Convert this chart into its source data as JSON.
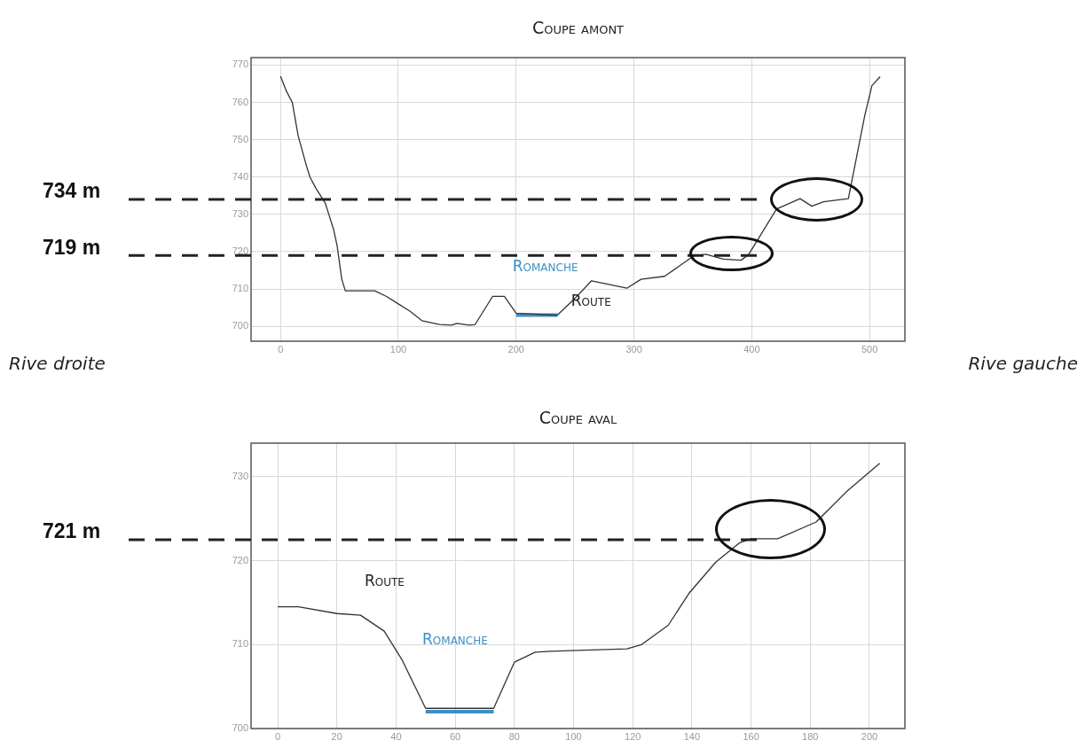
{
  "chart_data": [
    {
      "type": "line",
      "title": "Coupe amont",
      "x": [
        0,
        5,
        10,
        15,
        22,
        25,
        30,
        38,
        40,
        45,
        48,
        52,
        55,
        60,
        80,
        90,
        100,
        110,
        120,
        135,
        145,
        150,
        160,
        165,
        180,
        190,
        200,
        235,
        250,
        264,
        294,
        306,
        326,
        351,
        361,
        376,
        391,
        397.5,
        421,
        441,
        451,
        461,
        482,
        496,
        502,
        509
      ],
      "series": [
        {
          "color": "#333333",
          "values": [
            767,
            763,
            760,
            751,
            743,
            740,
            737,
            733,
            731,
            726,
            721.7,
            712.6,
            709.5,
            709.5,
            709.5,
            708,
            706,
            704,
            701.5,
            700.5,
            700.3,
            700.8,
            700.3,
            700.4,
            708,
            708,
            703.5,
            703,
            707.5,
            712.2,
            710.2,
            712.6,
            713.4,
            718.9,
            719.3,
            718,
            717.7,
            719.3,
            731.4,
            734.2,
            732.2,
            733.4,
            734.2,
            756.6,
            764.5,
            766.9
          ]
        },
        {
          "color": "#3d8fc4",
          "x": [
            200,
            235
          ],
          "values": [
            703,
            703
          ]
        }
      ],
      "xlim": [
        -25,
        530
      ],
      "ylim": [
        696,
        772
      ],
      "xticks": [
        0,
        100,
        200,
        300,
        400,
        500
      ],
      "yticks": [
        700,
        710,
        720,
        730,
        740,
        750,
        760,
        770
      ],
      "grid": true,
      "ref_lines": [
        {
          "axis": "y",
          "value": 734,
          "label": "734 m",
          "line_style": "dashed"
        },
        {
          "axis": "y",
          "value": 719,
          "label": "719 m",
          "line_style": "dashed"
        }
      ],
      "annotations": [
        "Romanche",
        "Route",
        "Rive droite",
        "Rive gauche"
      ]
    },
    {
      "type": "line",
      "title": "Coupe aval",
      "x": [
        0,
        7,
        20,
        28,
        36,
        42,
        50,
        73,
        80,
        87,
        92,
        101,
        118,
        123,
        132,
        139,
        148,
        156,
        160,
        169,
        182,
        192.5,
        203.5
      ],
      "series": [
        {
          "color": "#333333",
          "values": [
            714.5,
            714.5,
            713.7,
            713.5,
            711.6,
            708.2,
            702.4,
            702.4,
            707.9,
            709.1,
            709.2,
            709.3,
            709.5,
            710,
            712.3,
            716.1,
            719.8,
            722.1,
            722.6,
            722.6,
            724.6,
            728.3,
            731.6
          ]
        },
        {
          "color": "#3d8fc4",
          "x": [
            50,
            73
          ],
          "values": [
            702,
            702
          ]
        }
      ],
      "xlim": [
        -9,
        212
      ],
      "ylim": [
        700,
        734
      ],
      "xticks": [
        0,
        20,
        40,
        60,
        80,
        100,
        120,
        140,
        160,
        180,
        200
      ],
      "yticks": [
        700,
        710,
        720,
        730
      ],
      "grid": true,
      "ref_lines": [
        {
          "axis": "y",
          "value": 722.5,
          "label": "721 m",
          "line_style": "dashed"
        }
      ],
      "annotations": [
        "Romanche",
        "Route"
      ]
    }
  ]
}
